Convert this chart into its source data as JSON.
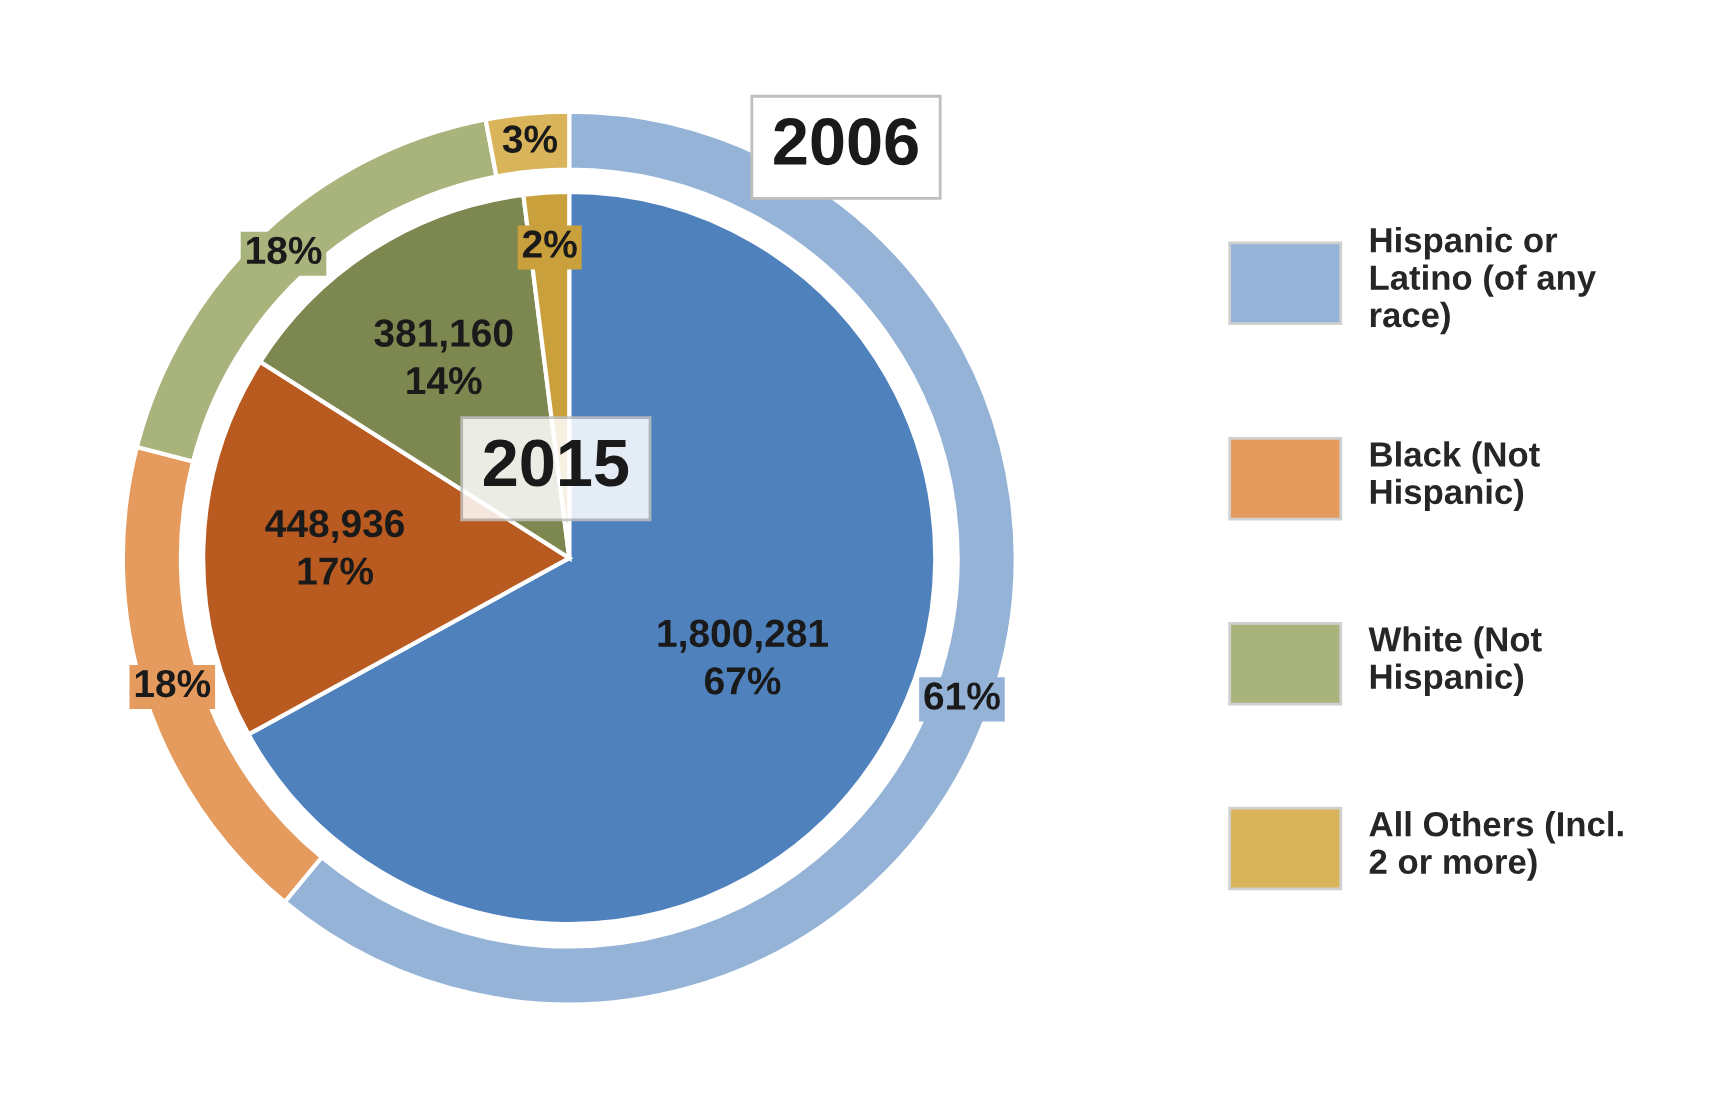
{
  "chart_data": {
    "type": "pie",
    "categories": [
      "Hispanic or Latino (of any race)",
      "Black (Not Hispanic)",
      "White (Not Hispanic)",
      "All Others (Incl. 2 or more)"
    ],
    "legend": "right",
    "series": [
      {
        "name": "2006",
        "type": "donut",
        "values": [
          61,
          18,
          18,
          3
        ],
        "colors": [
          "#95b3d7",
          "#e59a5e",
          "#a9b47c",
          "#d9b45a"
        ],
        "value_labels": [
          "61%",
          "18%",
          "18%",
          "3%"
        ]
      },
      {
        "name": "2015",
        "values": [
          67,
          17,
          14,
          2
        ],
        "colors": [
          "#4f81bd",
          "#b95b20",
          "#7d8850",
          "#c9a03c"
        ],
        "value_labels": [
          "1,800,281\n67%",
          "448,936\n17%",
          "381,160\n14%",
          "2%"
        ]
      }
    ]
  }
}
